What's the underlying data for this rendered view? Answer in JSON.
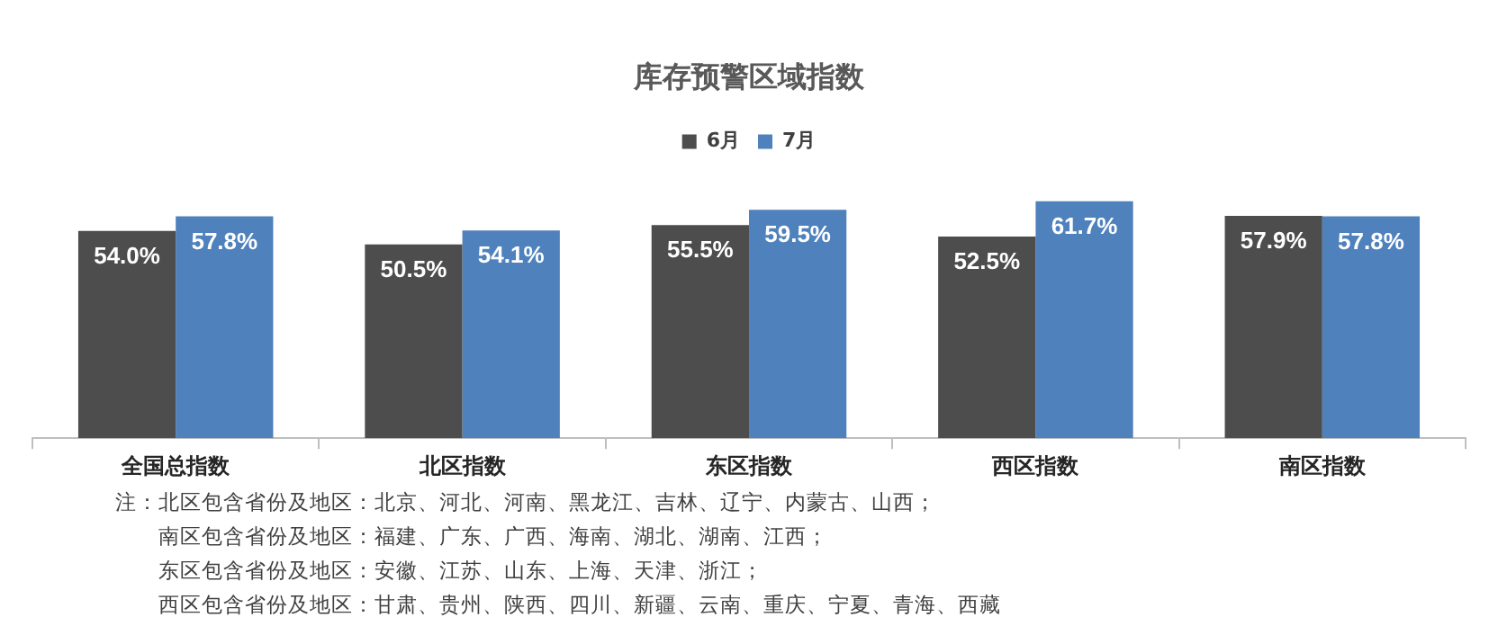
{
  "chart_data": {
    "type": "bar",
    "title": "库存预警区域指数",
    "categories": [
      "全国总指数",
      "北区指数",
      "东区指数",
      "西区指数",
      "南区指数"
    ],
    "series": [
      {
        "name": "6月",
        "color": "#4d4d4d",
        "values": [
          54.0,
          50.5,
          55.5,
          52.5,
          57.9
        ],
        "value_labels": [
          "54.0%",
          "50.5%",
          "55.5%",
          "52.5%",
          "57.9%"
        ]
      },
      {
        "name": "7月",
        "color": "#4f81bd",
        "values": [
          57.8,
          54.1,
          59.5,
          61.7,
          57.8
        ],
        "value_labels": [
          "57.8%",
          "54.1%",
          "59.5%",
          "61.7%",
          "57.8%"
        ]
      }
    ],
    "legend": "top",
    "annotations": [
      "注：北区包含省份及地区：北京、河北、河南、黑龙江、吉林、辽宁、内蒙古、山西；",
      "南区包含省份及地区：福建、广东、广西、海南、湖北、湖南、江西；",
      "东区包含省份及地区：安徽、江苏、山东、上海、天津、浙江；",
      "西区包含省份及地区：甘肃、贵州、陕西、四川、新疆、云南、重庆、宁夏、青海、西藏"
    ]
  }
}
